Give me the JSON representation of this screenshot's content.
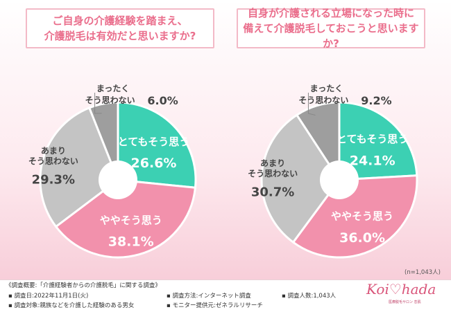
{
  "chart_data": [
    {
      "type": "pie",
      "title": "ご自身の介護経験を踏まえ、\n介護脱毛は有効だと思いますか?",
      "categories": [
        "とてもそう思う",
        "ややそう思う",
        "あまりそう思わない",
        "まったくそう思わない"
      ],
      "label_lines": [
        [
          "とてもそう思う"
        ],
        [
          "ややそう思う"
        ],
        [
          "あまり",
          "そう思わない"
        ],
        [
          "まったく",
          "そう思わない"
        ]
      ],
      "values": [
        26.6,
        38.1,
        29.3,
        6.0
      ],
      "value_labels": [
        "26.6%",
        "38.1%",
        "29.3%",
        "6.0%"
      ],
      "colors": [
        "#3cd0b3",
        "#f291ac",
        "#c4c4c4",
        "#9e9e9e"
      ]
    },
    {
      "type": "pie",
      "title": "自身が介護される立場になった時に\n備えて介護脱毛しておこうと思いますか?",
      "categories": [
        "とてもそう思う",
        "ややそう思う",
        "あまりそう思わない",
        "まったくそう思わない"
      ],
      "label_lines": [
        [
          "とてもそう思う"
        ],
        [
          "ややそう思う"
        ],
        [
          "あまり",
          "そう思わない"
        ],
        [
          "まったく",
          "そう思わない"
        ]
      ],
      "values": [
        24.1,
        36.0,
        30.7,
        9.2
      ],
      "value_labels": [
        "24.1%",
        "36.0%",
        "30.7%",
        "9.2%"
      ],
      "colors": [
        "#3cd0b3",
        "#f291ac",
        "#c4c4c4",
        "#9e9e9e"
      ]
    }
  ],
  "sample_size": "(n=1,043人)",
  "footer": {
    "survey_title": "《調査概要:「介護経験者からの介護脱毛」に関する調査》",
    "date": "▪ 調査日:2022年11月1日(火)",
    "method": "▪ 調査方法:インターネット調査",
    "count": "▪ 調査人数:1,043人",
    "target": "▪ 調査対象:親族などを介護した経験のある男女",
    "provider": "▪ モニター提供元:ゼネラルリサーチ"
  },
  "logo": {
    "text": "Koi♡hada",
    "subtext": "医療脱毛サロン 恋肌"
  }
}
